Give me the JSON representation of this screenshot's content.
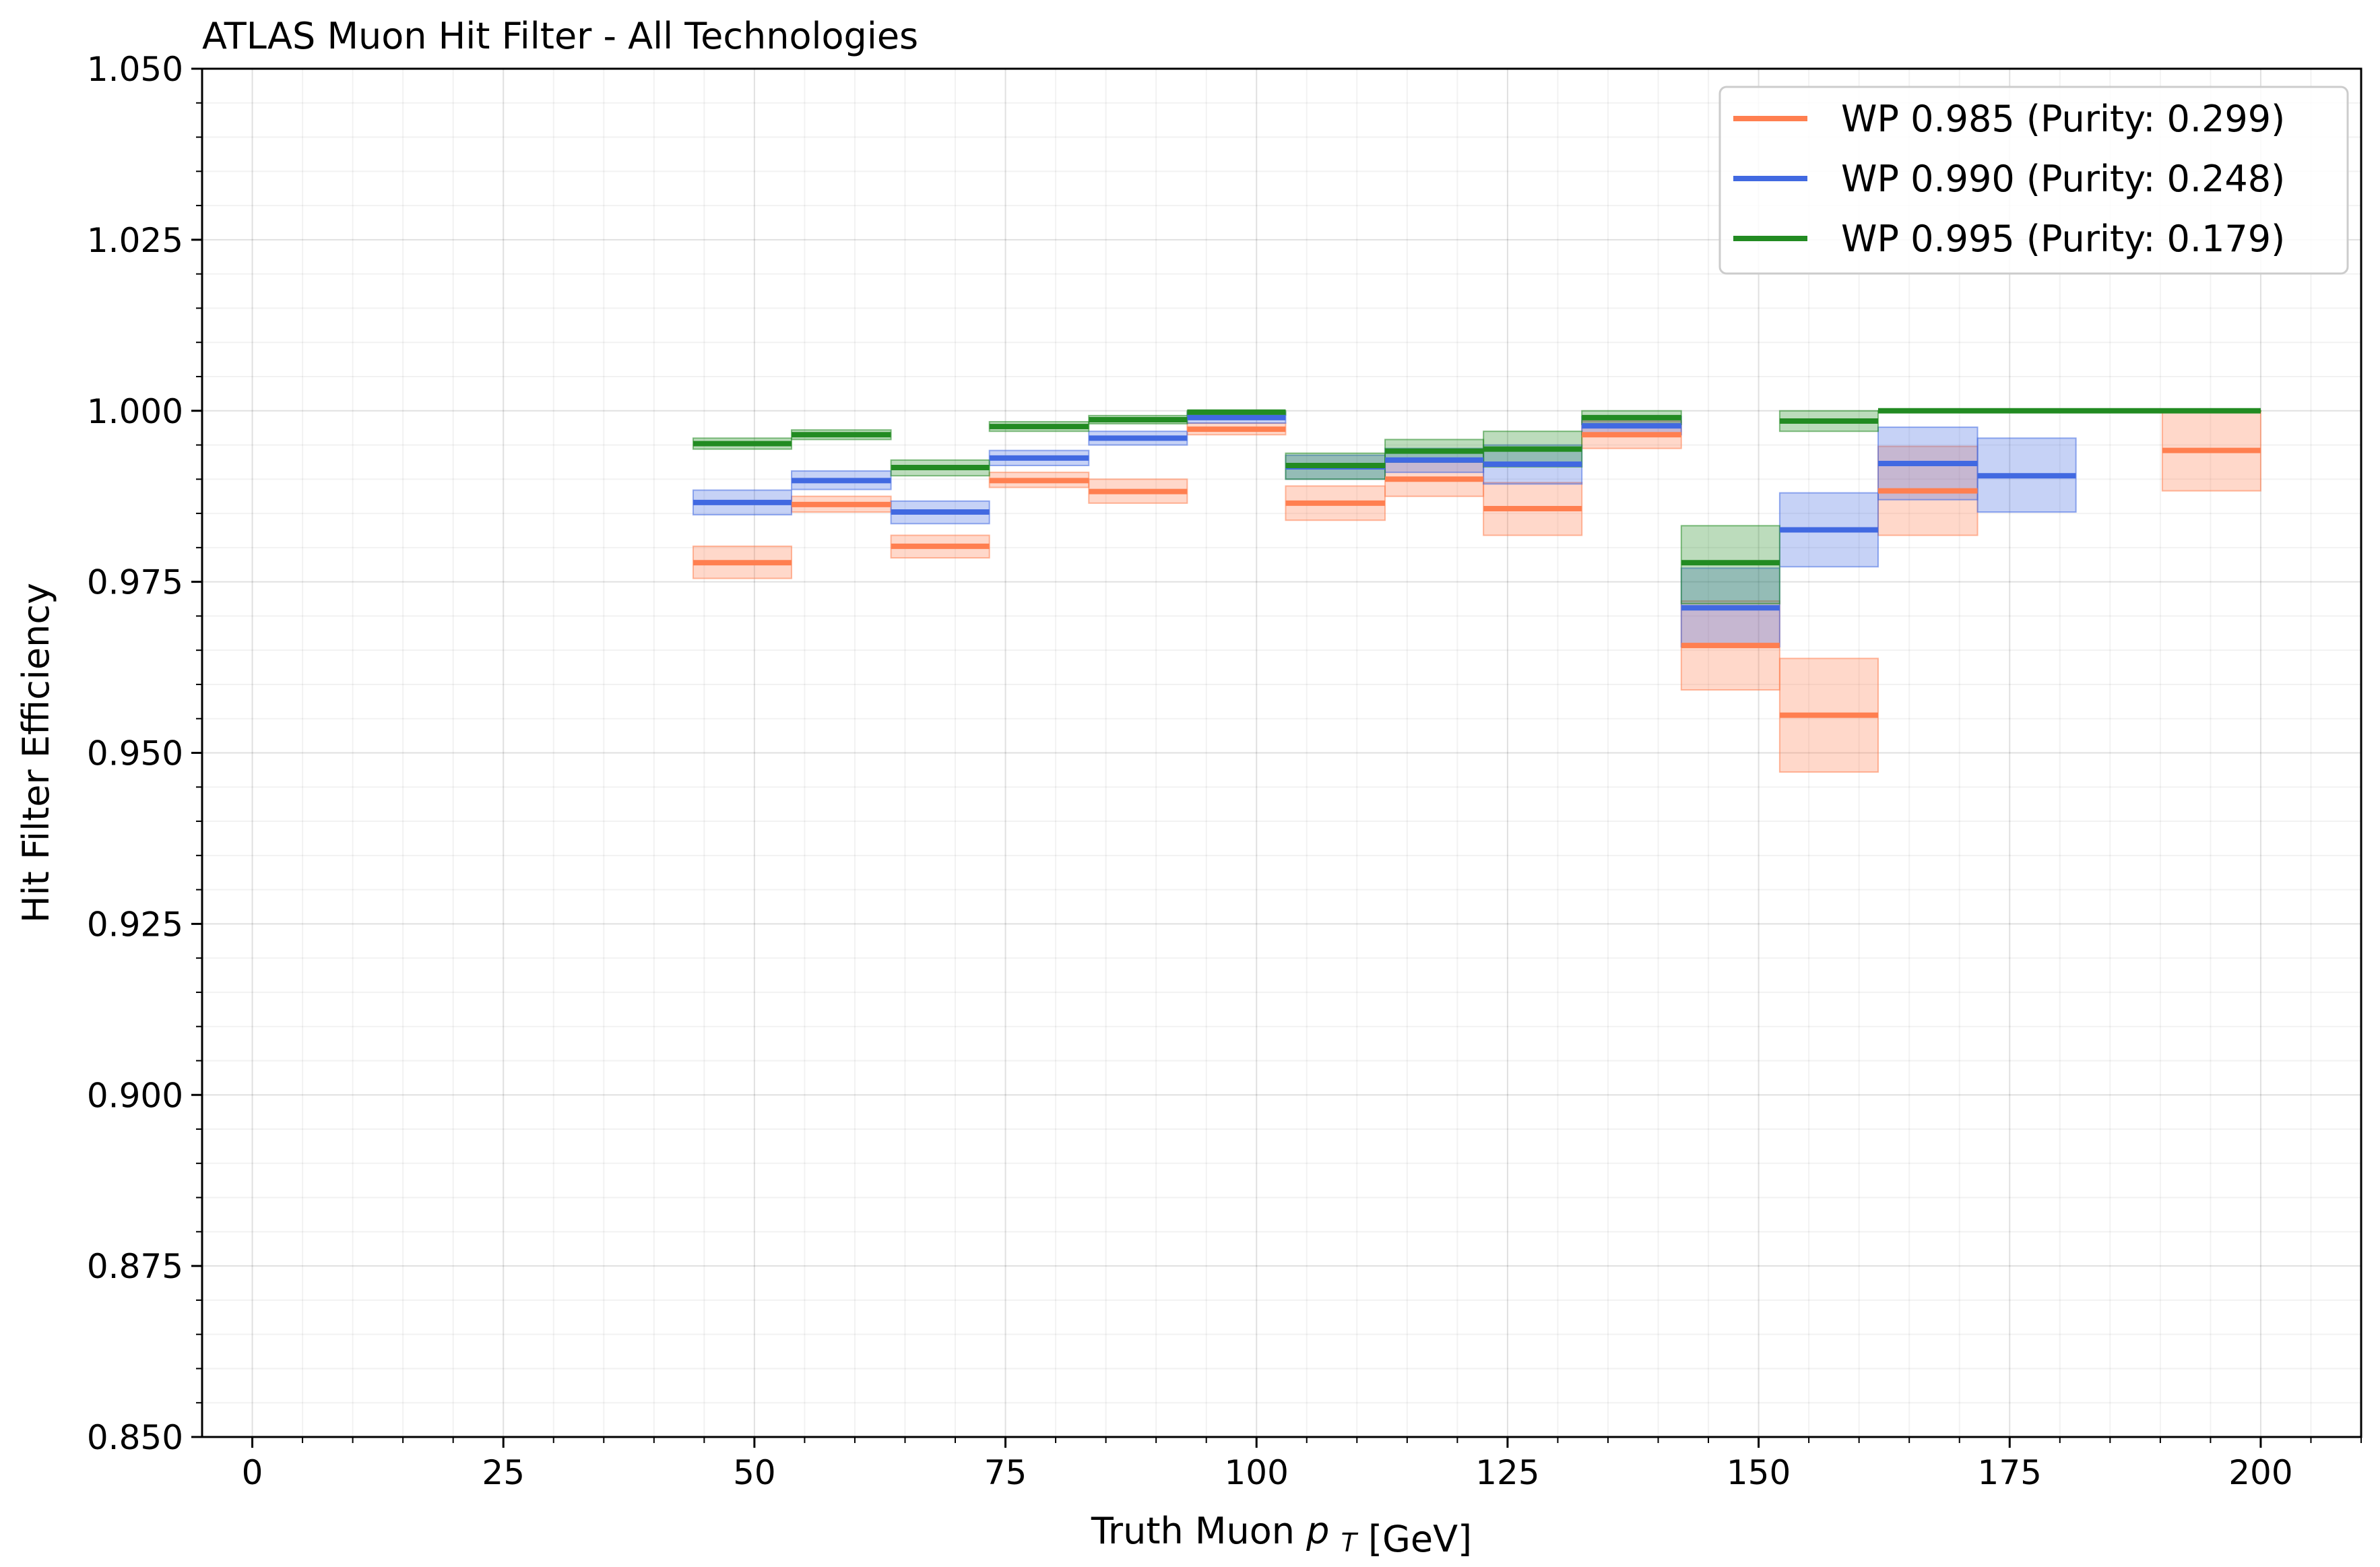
{
  "chart_data": {
    "type": "step-band",
    "title": "ATLAS Muon Hit Filter - All Technologies",
    "xlabel": "Truth Muon",
    "xlabel_symbol": "p",
    "xlabel_subscript": "T",
    "xlabel_unit": "[GeV]",
    "ylabel": "Hit Filter Efficiency",
    "xlim": [
      -5,
      210
    ],
    "ylim": [
      0.85,
      1.05
    ],
    "xticks": [
      0,
      25,
      50,
      75,
      100,
      125,
      150,
      175,
      200
    ],
    "xtick_labels": [
      "0",
      "25",
      "50",
      "75",
      "100",
      "125",
      "150",
      "175",
      "200"
    ],
    "yticks": [
      0.85,
      0.875,
      0.9,
      0.925,
      0.95,
      0.975,
      1.0,
      1.025,
      1.05
    ],
    "ytick_labels": [
      "0.850",
      "0.875",
      "0.900",
      "0.925",
      "0.950",
      "0.975",
      "1.000",
      "1.025",
      "1.050"
    ],
    "grid": true,
    "legend_position": "top-right",
    "series": [
      {
        "name": "WP 0.985 (Purity: 0.299)",
        "color": "#ff7f50",
        "bins": [
          {
            "x0": 43.9,
            "x1": 53.7,
            "y": 0.9778,
            "lo": 0.9755,
            "hi": 0.9802
          },
          {
            "x0": 53.7,
            "x1": 63.6,
            "y": 0.9863,
            "lo": 0.9852,
            "hi": 0.9875
          },
          {
            "x0": 63.6,
            "x1": 73.4,
            "y": 0.9802,
            "lo": 0.9785,
            "hi": 0.9818
          },
          {
            "x0": 73.4,
            "x1": 83.3,
            "y": 0.9898,
            "lo": 0.9888,
            "hi": 0.991
          },
          {
            "x0": 83.3,
            "x1": 93.1,
            "y": 0.9882,
            "lo": 0.9865,
            "hi": 0.99
          },
          {
            "x0": 93.1,
            "x1": 102.9,
            "y": 0.9973,
            "lo": 0.9965,
            "hi": 0.9982
          },
          {
            "x0": 102.9,
            "x1": 112.8,
            "y": 0.9865,
            "lo": 0.984,
            "hi": 0.989
          },
          {
            "x0": 112.8,
            "x1": 122.6,
            "y": 0.99,
            "lo": 0.9875,
            "hi": 0.9925
          },
          {
            "x0": 122.6,
            "x1": 132.4,
            "y": 0.9857,
            "lo": 0.9818,
            "hi": 0.9895
          },
          {
            "x0": 132.4,
            "x1": 142.3,
            "y": 0.9965,
            "lo": 0.9945,
            "hi": 0.9985
          },
          {
            "x0": 142.3,
            "x1": 152.1,
            "y": 0.9657,
            "lo": 0.9592,
            "hi": 0.9722
          },
          {
            "x0": 152.1,
            "x1": 161.9,
            "y": 0.9555,
            "lo": 0.9472,
            "hi": 0.9638
          },
          {
            "x0": 161.9,
            "x1": 171.8,
            "y": 0.9883,
            "lo": 0.9818,
            "hi": 0.9948
          },
          {
            "x0": 190.2,
            "x1": 200.0,
            "y": 0.9942,
            "lo": 0.9883,
            "hi": 1.0
          }
        ]
      },
      {
        "name": "WP 0.990 (Purity: 0.248)",
        "color": "#4169e1",
        "bins": [
          {
            "x0": 43.9,
            "x1": 53.7,
            "y": 0.9866,
            "lo": 0.9848,
            "hi": 0.9884
          },
          {
            "x0": 53.7,
            "x1": 63.6,
            "y": 0.9898,
            "lo": 0.9885,
            "hi": 0.9912
          },
          {
            "x0": 63.6,
            "x1": 73.4,
            "y": 0.9852,
            "lo": 0.9835,
            "hi": 0.9868
          },
          {
            "x0": 73.4,
            "x1": 83.3,
            "y": 0.9931,
            "lo": 0.992,
            "hi": 0.9942
          },
          {
            "x0": 83.3,
            "x1": 93.1,
            "y": 0.996,
            "lo": 0.995,
            "hi": 0.997
          },
          {
            "x0": 93.1,
            "x1": 102.9,
            "y": 0.999,
            "lo": 0.9982,
            "hi": 0.9998
          },
          {
            "x0": 102.9,
            "x1": 112.8,
            "y": 0.9918,
            "lo": 0.99,
            "hi": 0.9935
          },
          {
            "x0": 112.8,
            "x1": 122.6,
            "y": 0.9928,
            "lo": 0.991,
            "hi": 0.9945
          },
          {
            "x0": 122.6,
            "x1": 132.4,
            "y": 0.9922,
            "lo": 0.9893,
            "hi": 0.995
          },
          {
            "x0": 132.4,
            "x1": 142.3,
            "y": 0.9978,
            "lo": 0.9965,
            "hi": 0.9992
          },
          {
            "x0": 142.3,
            "x1": 152.1,
            "y": 0.9712,
            "lo": 0.9655,
            "hi": 0.977
          },
          {
            "x0": 152.1,
            "x1": 161.9,
            "y": 0.9826,
            "lo": 0.9772,
            "hi": 0.988
          },
          {
            "x0": 161.9,
            "x1": 171.8,
            "y": 0.9923,
            "lo": 0.987,
            "hi": 0.9976
          },
          {
            "x0": 171.8,
            "x1": 181.6,
            "y": 0.9905,
            "lo": 0.9852,
            "hi": 0.996
          }
        ]
      },
      {
        "name": "WP 0.995 (Purity: 0.179)",
        "color": "#228b22",
        "bins": [
          {
            "x0": 43.9,
            "x1": 53.7,
            "y": 0.9952,
            "lo": 0.9944,
            "hi": 0.996
          },
          {
            "x0": 53.7,
            "x1": 63.6,
            "y": 0.9965,
            "lo": 0.9958,
            "hi": 0.9972
          },
          {
            "x0": 63.6,
            "x1": 73.4,
            "y": 0.9917,
            "lo": 0.9905,
            "hi": 0.9928
          },
          {
            "x0": 73.4,
            "x1": 83.3,
            "y": 0.9977,
            "lo": 0.997,
            "hi": 0.9984
          },
          {
            "x0": 83.3,
            "x1": 93.1,
            "y": 0.9987,
            "lo": 0.9981,
            "hi": 0.9993
          },
          {
            "x0": 93.1,
            "x1": 102.9,
            "y": 0.9998,
            "lo": 0.9994,
            "hi": 1.0
          },
          {
            "x0": 102.9,
            "x1": 112.8,
            "y": 0.992,
            "lo": 0.99,
            "hi": 0.9938
          },
          {
            "x0": 112.8,
            "x1": 122.6,
            "y": 0.9941,
            "lo": 0.9925,
            "hi": 0.9958
          },
          {
            "x0": 122.6,
            "x1": 132.4,
            "y": 0.9944,
            "lo": 0.9918,
            "hi": 0.997
          },
          {
            "x0": 132.4,
            "x1": 142.3,
            "y": 0.999,
            "lo": 0.998,
            "hi": 1.0
          },
          {
            "x0": 142.3,
            "x1": 152.1,
            "y": 0.9778,
            "lo": 0.9718,
            "hi": 0.9832
          },
          {
            "x0": 152.1,
            "x1": 161.9,
            "y": 0.9985,
            "lo": 0.997,
            "hi": 1.0
          },
          {
            "x0": 161.9,
            "x1": 200.0,
            "y": 1.0,
            "lo": 1.0,
            "hi": 1.0
          }
        ]
      }
    ]
  }
}
